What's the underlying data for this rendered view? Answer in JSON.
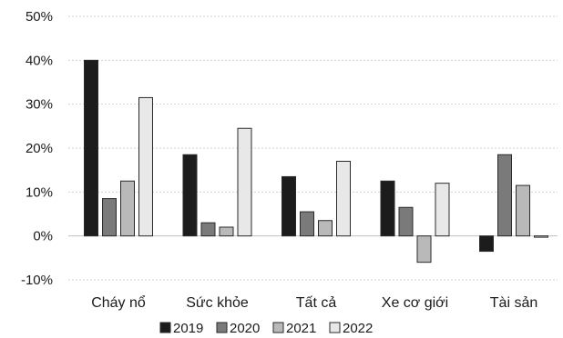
{
  "chart_data": {
    "type": "bar",
    "categories": [
      "Cháy nổ",
      "Sức khỏe",
      "Tất cả",
      "Xe cơ giới",
      "Tài sản"
    ],
    "series": [
      {
        "name": "2019",
        "values": [
          40,
          18.5,
          13.5,
          12.5,
          -3.5
        ],
        "color": "#1c1c1c"
      },
      {
        "name": "2020",
        "values": [
          8.5,
          3,
          5.5,
          6.5,
          18.5
        ],
        "color": "#7a7a7a"
      },
      {
        "name": "2021",
        "values": [
          12.5,
          2,
          3.5,
          -6,
          11.5
        ],
        "color": "#b9b9b9"
      },
      {
        "name": "2022",
        "values": [
          31.5,
          24.5,
          17,
          12,
          -0.3
        ],
        "color": "#e8e8e8"
      }
    ],
    "y_ticks": [
      "50%",
      "40%",
      "30%",
      "20%",
      "10%",
      "0%",
      "-10%"
    ],
    "y_tick_values": [
      50,
      40,
      30,
      20,
      10,
      0,
      -10
    ],
    "ylim": [
      -10,
      50
    ],
    "grid": true,
    "legend_position": "bottom"
  }
}
